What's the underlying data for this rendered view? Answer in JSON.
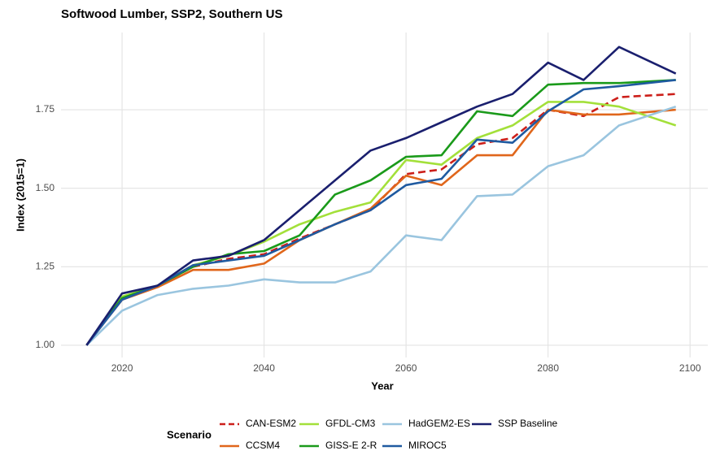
{
  "chart_data": {
    "type": "line",
    "title": "Softwood Lumber, SSP2, Southern US",
    "x_label": "Year",
    "y_label": "Index (2015=1)",
    "legend_title": "Scenario",
    "x": [
      2015,
      2020,
      2025,
      2030,
      2035,
      2040,
      2045,
      2050,
      2055,
      2060,
      2065,
      2070,
      2075,
      2080,
      2085,
      2090,
      2098
    ],
    "xlim": [
      2011.4,
      2102.5
    ],
    "xticks": [
      2020,
      2040,
      2060,
      2080,
      2100
    ],
    "ylim": [
      0.961,
      1.996
    ],
    "yticks": [
      {
        "value": 1.0,
        "label": "1.00"
      },
      1.25,
      {
        "value": 1.5,
        "label": "1.50"
      },
      1.75
    ],
    "grid": true,
    "legend": "bottom",
    "series": [
      {
        "name": "CAN-ESM2",
        "color": "#cc1f1a",
        "dashed": true,
        "values": [
          1.0,
          1.15,
          1.19,
          1.25,
          1.275,
          1.29,
          1.34,
          1.385,
          1.43,
          1.545,
          1.56,
          1.64,
          1.66,
          1.75,
          1.73,
          1.79,
          1.8
        ]
      },
      {
        "name": "CCSM4",
        "color": "#e0661b",
        "values": [
          1.0,
          1.145,
          1.185,
          1.24,
          1.24,
          1.26,
          1.335,
          1.385,
          1.435,
          1.54,
          1.51,
          1.605,
          1.605,
          1.75,
          1.735,
          1.735,
          1.75
        ]
      },
      {
        "name": "GFDL-CM3",
        "color": "#a3e03a",
        "values": [
          1.0,
          1.155,
          1.19,
          1.255,
          1.285,
          1.33,
          1.385,
          1.425,
          1.455,
          1.59,
          1.575,
          1.66,
          1.7,
          1.775,
          1.775,
          1.76,
          1.7
        ]
      },
      {
        "name": "GISS-E 2-R",
        "color": "#1a9a1a",
        "values": [
          1.0,
          1.15,
          1.19,
          1.25,
          1.29,
          1.3,
          1.35,
          1.48,
          1.525,
          1.6,
          1.605,
          1.745,
          1.73,
          1.83,
          1.835,
          1.835,
          1.845
        ]
      },
      {
        "name": "HadGEM2-ES",
        "color": "#9ac5df",
        "values": [
          1.0,
          1.11,
          1.16,
          1.18,
          1.19,
          1.21,
          1.2,
          1.2,
          1.235,
          1.35,
          1.335,
          1.475,
          1.48,
          1.57,
          1.605,
          1.7,
          1.76
        ]
      },
      {
        "name": "MIROC5",
        "color": "#1f5aa0",
        "values": [
          1.0,
          1.145,
          1.19,
          1.255,
          1.27,
          1.285,
          1.335,
          1.385,
          1.43,
          1.51,
          1.53,
          1.655,
          1.645,
          1.745,
          1.815,
          1.825,
          1.845
        ]
      },
      {
        "name": "SSP Baseline",
        "color": "#1a1f6e",
        "values": [
          1.0,
          1.165,
          1.19,
          1.27,
          1.285,
          1.335,
          1.43,
          1.525,
          1.62,
          1.66,
          1.71,
          1.76,
          1.8,
          1.9,
          1.845,
          1.95,
          1.865
        ]
      }
    ]
  }
}
